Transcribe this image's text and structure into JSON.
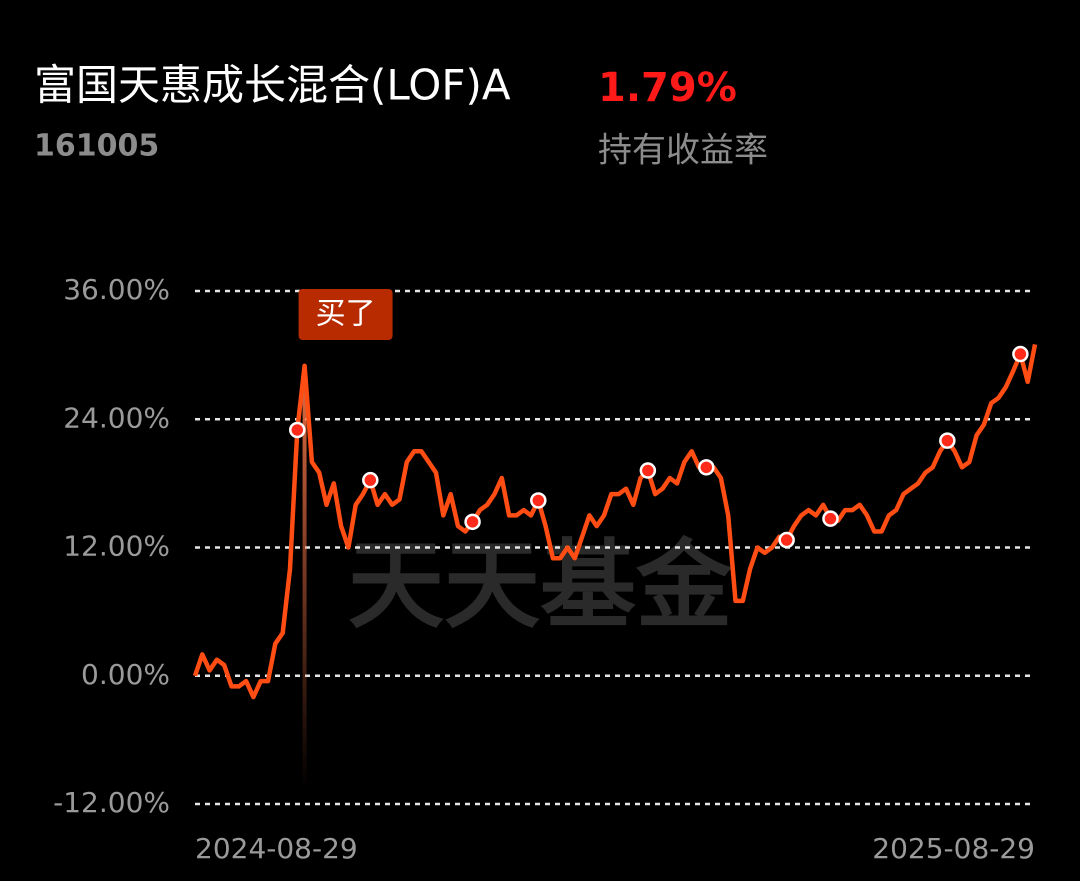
{
  "chart_data": {
    "type": "line",
    "title": "富国天惠成长混合(LOF)A",
    "subtitle": "161005",
    "return_value": "1.79%",
    "return_label": "持有收益率",
    "watermark": "天天基金",
    "annotation": {
      "text": "买了",
      "index": 15
    },
    "categories": [
      "2024-08-29",
      null,
      null,
      null,
      null,
      null,
      null,
      null,
      null,
      null,
      null,
      null,
      null,
      null,
      null,
      null,
      null,
      null,
      null,
      null,
      null,
      null,
      null,
      null,
      null,
      null,
      null,
      null,
      null,
      null,
      null,
      null,
      null,
      null,
      null,
      null,
      null,
      null,
      null,
      null,
      null,
      null,
      null,
      null,
      null,
      null,
      null,
      null,
      null,
      null,
      null,
      null,
      null,
      null,
      null,
      null,
      null,
      null,
      null,
      null,
      null,
      null,
      null,
      null,
      null,
      null,
      null,
      null,
      null,
      null,
      null,
      null,
      null,
      null,
      null,
      null,
      null,
      null,
      null,
      null,
      null,
      null,
      null,
      null,
      null,
      null,
      null,
      null,
      null,
      null,
      null,
      null,
      null,
      null,
      null,
      null,
      null,
      null,
      null,
      null,
      null,
      null,
      null,
      null,
      null,
      null,
      null,
      null,
      null,
      null,
      null,
      null,
      null,
      null,
      null,
      "2025-08-29"
    ],
    "series": [
      {
        "color": "#ff4d14",
        "values": [
          0,
          2,
          0.5,
          1.5,
          1,
          -1,
          -1,
          -0.5,
          -2,
          -0.5,
          -0.5,
          3,
          4,
          10,
          23,
          29,
          20,
          19,
          16,
          18,
          14,
          12,
          16,
          17,
          18.3,
          16,
          17,
          16,
          16.5,
          20,
          21,
          21,
          20,
          19,
          15,
          17,
          14,
          13.5,
          14.4,
          15.5,
          16,
          17,
          18.5,
          15,
          15,
          15.5,
          15,
          16.4,
          14,
          11,
          11,
          12,
          11,
          13,
          15,
          14,
          15,
          17,
          17,
          17.5,
          16,
          18.5,
          19.2,
          17,
          17.5,
          18.5,
          18,
          20,
          21,
          19.5,
          19.5,
          19.5,
          18.5,
          15,
          7,
          7,
          10,
          12,
          11.5,
          12,
          13,
          12.7,
          14,
          15,
          15.5,
          15,
          16,
          14.7,
          14.5,
          15.5,
          15.5,
          16,
          15,
          13.5,
          13.5,
          15,
          15.5,
          17,
          17.5,
          18,
          19,
          19.5,
          21,
          22,
          21,
          19.5,
          20,
          22.5,
          23.5,
          25.5,
          26,
          27,
          28.5,
          30.1,
          27.5,
          31
        ]
      }
    ],
    "marked_points": [
      14,
      24,
      38,
      47,
      62,
      70,
      81,
      87,
      103,
      113
    ],
    "ylim": [
      -12,
      36
    ],
    "yticks": [
      {
        "value": -12,
        "label": "-12.00%"
      },
      {
        "value": 0,
        "label": "0.00%"
      },
      {
        "value": 12,
        "label": "12.00%"
      },
      {
        "value": 24,
        "label": "24.00%"
      },
      {
        "value": 36,
        "label": "36.00%"
      }
    ],
    "grid": true
  }
}
